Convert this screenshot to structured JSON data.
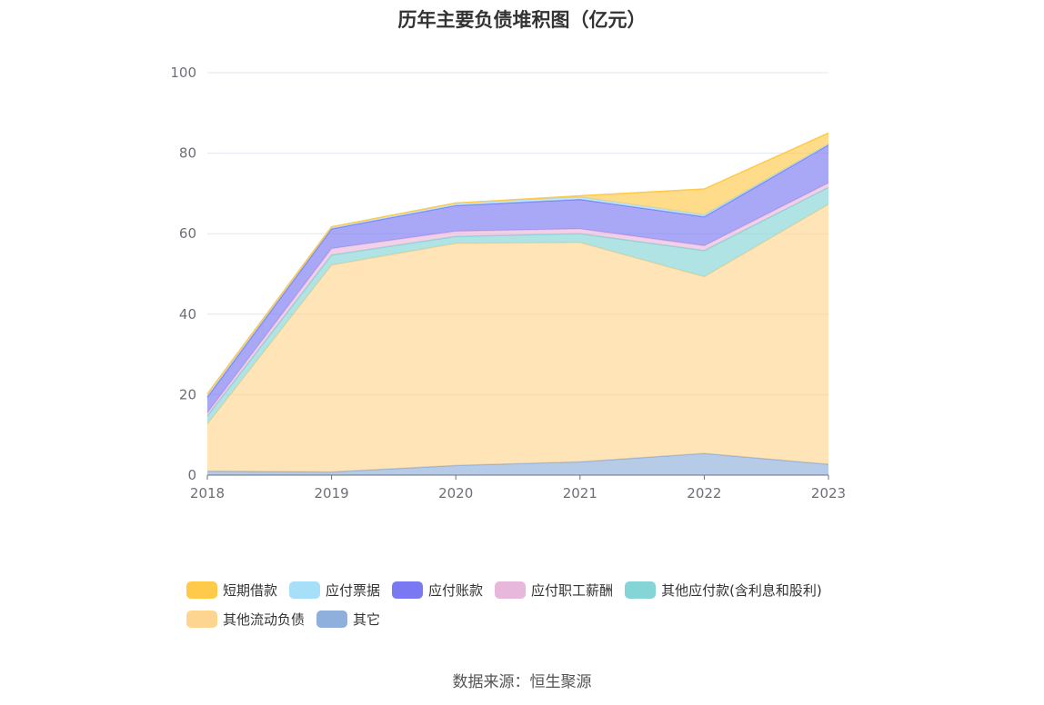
{
  "source_text": "数据来源：恒生聚源",
  "chart_data": {
    "type": "area",
    "stacked": true,
    "title": "历年主要负债堆积图（亿元）",
    "xlabel": "",
    "ylabel": "",
    "x": [
      "2018",
      "2019",
      "2020",
      "2021",
      "2022",
      "2023"
    ],
    "ylim": [
      0,
      100
    ],
    "yticks": [
      "0",
      "20",
      "40",
      "60",
      "80",
      "100"
    ],
    "grid": true,
    "legend_position": "bottom",
    "series": [
      {
        "name": "其它",
        "color": "#8fafdc",
        "values": [
          1.0,
          0.8,
          2.4,
          3.3,
          5.4,
          2.7
        ]
      },
      {
        "name": "其他流动负债",
        "color": "#fdd591",
        "values": [
          11.7,
          51.4,
          55.2,
          54.5,
          43.9,
          64.6
        ]
      },
      {
        "name": "其他应付款(含利息和股利)",
        "color": "#85d5d6",
        "values": [
          2.0,
          2.5,
          1.7,
          2.2,
          6.5,
          4.2
        ]
      },
      {
        "name": "应付职工薪酬",
        "color": "#e8b8dc",
        "values": [
          0.8,
          1.6,
          1.3,
          1.2,
          1.2,
          1.1
        ]
      },
      {
        "name": "应付账款",
        "color": "#7b79f2",
        "values": [
          3.9,
          4.9,
          6.4,
          7.3,
          7.2,
          9.5
        ]
      },
      {
        "name": "应付票据",
        "color": "#a8dff8",
        "values": [
          0.8,
          0.5,
          0.6,
          0.6,
          0.5,
          0.2
        ]
      },
      {
        "name": "短期借款",
        "color": "#ffc94a",
        "values": [
          0.0,
          0.0,
          0.0,
          0.3,
          6.4,
          2.7
        ]
      }
    ],
    "legend_order": [
      "短期借款",
      "应付票据",
      "应付账款",
      "应付职工薪酬",
      "其他应付款(含利息和股利)",
      "其他流动负债",
      "其它"
    ]
  }
}
